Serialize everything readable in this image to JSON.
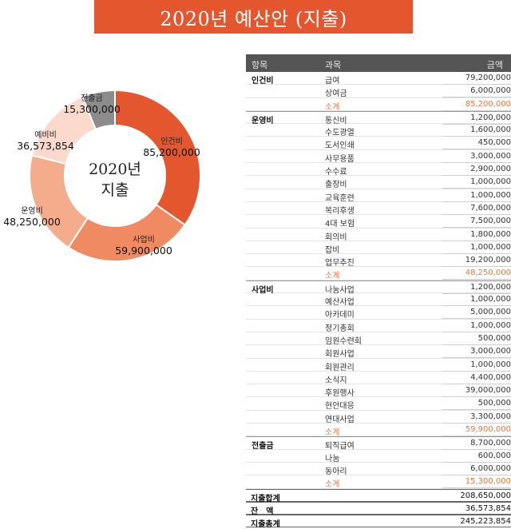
{
  "title": "2020년 예산안 (지출)",
  "center_label": [
    "2020년",
    "지출"
  ],
  "colors": {
    "title_bg": "#e4572e",
    "header_bg": "#555555",
    "subtotal": "#e07a4a"
  },
  "chart_data": {
    "type": "pie",
    "donut": true,
    "slices": [
      {
        "label": "인건비",
        "value": 85200000,
        "display": "85,200,000",
        "color": "#e4572e",
        "label_side": "right"
      },
      {
        "label": "사업비",
        "value": 59900000,
        "display": "59,900,000",
        "color": "#ef8a62",
        "label_side": "right"
      },
      {
        "label": "운영비",
        "value": 48250000,
        "display": "48,250,000",
        "color": "#f4ac8c",
        "label_side": "left"
      },
      {
        "label": "예비비",
        "value": 36573854,
        "display": "36,573,854",
        "color": "#fbd9cc",
        "label_side": "left"
      },
      {
        "label": "전출금",
        "value": 15300000,
        "display": "15,300,000",
        "color": "#8c8c8c",
        "label_side": "left"
      }
    ]
  },
  "table": {
    "headers": {
      "category": "항목",
      "item": "과목",
      "amount": "금액"
    },
    "rows": [
      {
        "category": "인건비",
        "item": "급여",
        "amount": "79,200,000"
      },
      {
        "category": "",
        "item": "상여금",
        "amount": "6,000,000"
      },
      {
        "category": "",
        "item": "소계",
        "amount": "85,200,000",
        "subtotal": true
      },
      {
        "category": "운영비",
        "item": "통신비",
        "amount": "1,200,000"
      },
      {
        "category": "",
        "item": "수도광열",
        "amount": "1,600,000"
      },
      {
        "category": "",
        "item": "도서인쇄",
        "amount": "450,000"
      },
      {
        "category": "",
        "item": "사무용품",
        "amount": "3,000,000"
      },
      {
        "category": "",
        "item": "수수료",
        "amount": "2,900,000"
      },
      {
        "category": "",
        "item": "출장비",
        "amount": "1,000,000"
      },
      {
        "category": "",
        "item": "교육훈련",
        "amount": "1,000,000"
      },
      {
        "category": "",
        "item": "복리후생",
        "amount": "7,600,000"
      },
      {
        "category": "",
        "item": "4대 보험",
        "amount": "7,500,000"
      },
      {
        "category": "",
        "item": "회의비",
        "amount": "1,800,000"
      },
      {
        "category": "",
        "item": "잡비",
        "amount": "1,000,000"
      },
      {
        "category": "",
        "item": "업무추진",
        "amount": "19,200,000"
      },
      {
        "category": "",
        "item": "소계",
        "amount": "48,250,000",
        "subtotal": true
      },
      {
        "category": "사업비",
        "item": "나눔사업",
        "amount": "1,200,000"
      },
      {
        "category": "",
        "item": "예산사업",
        "amount": "1,000,000"
      },
      {
        "category": "",
        "item": "아카데미",
        "amount": "5,000,000"
      },
      {
        "category": "",
        "item": "정기총회",
        "amount": "1,000,000"
      },
      {
        "category": "",
        "item": "임원수련회",
        "amount": "500,000"
      },
      {
        "category": "",
        "item": "회원사업",
        "amount": "3,000,000"
      },
      {
        "category": "",
        "item": "회원관리",
        "amount": "1,000,000"
      },
      {
        "category": "",
        "item": "소식지",
        "amount": "4,400,000"
      },
      {
        "category": "",
        "item": "후원행사",
        "amount": "39,000,000"
      },
      {
        "category": "",
        "item": "현안대응",
        "amount": "500,000"
      },
      {
        "category": "",
        "item": "연대사업",
        "amount": "3,300,000"
      },
      {
        "category": "",
        "item": "소계",
        "amount": "59,900,000",
        "subtotal": true
      },
      {
        "category": "전출금",
        "item": "퇴직급여",
        "amount": "8,700,000"
      },
      {
        "category": "",
        "item": "나눔",
        "amount": "600,000"
      },
      {
        "category": "",
        "item": "동아리",
        "amount": "6,000,000"
      },
      {
        "category": "",
        "item": "소계",
        "amount": "15,300,000",
        "subtotal": true
      }
    ],
    "totals": [
      {
        "label": "지출합계",
        "amount": "208,650,000"
      },
      {
        "label": "잔　액",
        "amount": "36,573,854"
      },
      {
        "label": "지출총계",
        "amount": "245,223,854"
      }
    ]
  }
}
